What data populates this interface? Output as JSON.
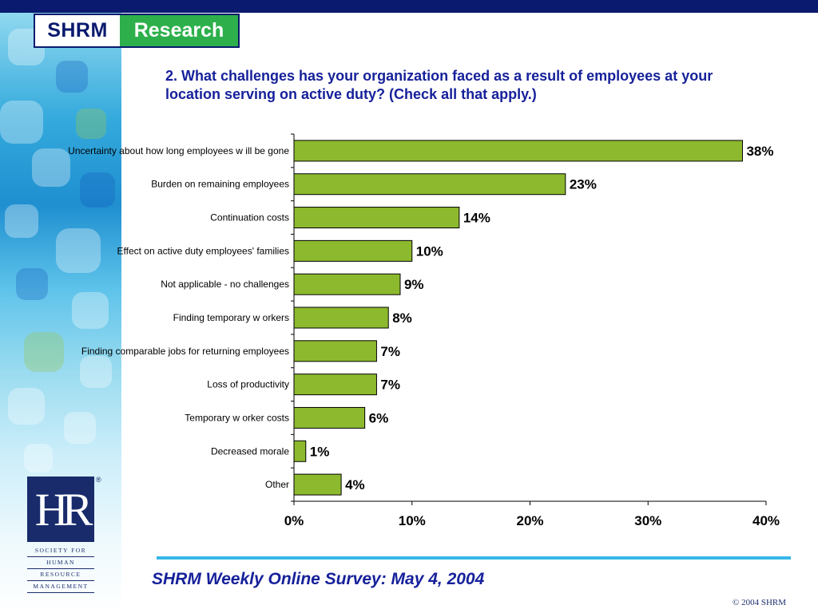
{
  "header": {
    "logo_left": "SHRM",
    "logo_right": "Research"
  },
  "question": "2. What challenges has your organization faced as a result of employees at your location serving on active duty?  (Check all that apply.)",
  "chart_data": {
    "type": "bar",
    "orientation": "horizontal",
    "categories": [
      "Uncertainty about how  long employees w ill be gone",
      "Burden on remaining employees",
      "Continuation costs",
      "Effect on active duty employees' families",
      "Not applicable - no challenges",
      "Finding temporary w orkers",
      "Finding comparable jobs for returning employees",
      "Loss of productivity",
      "Temporary w orker costs",
      "Decreased morale",
      "Other"
    ],
    "values": [
      38,
      23,
      14,
      10,
      9,
      8,
      7,
      7,
      6,
      1,
      4
    ],
    "value_labels": [
      "38%",
      "23%",
      "14%",
      "10%",
      "9%",
      "8%",
      "7%",
      "7%",
      "6%",
      "1%",
      "4%"
    ],
    "xlim": [
      0,
      40
    ],
    "xticks": [
      0,
      10,
      20,
      30,
      40
    ],
    "xtick_labels": [
      "0%",
      "10%",
      "20%",
      "30%",
      "40%"
    ],
    "bar_color": "#8db92e",
    "grid": false
  },
  "footer": {
    "title": "SHRM Weekly Online Survey: May 4, 2004",
    "copyright": "© 2004 SHRM"
  },
  "hr_logo": {
    "mark": "HR",
    "registered": "®",
    "lines": [
      "SOCIETY FOR",
      "HUMAN",
      "RESOURCE",
      "MANAGEMENT"
    ]
  },
  "colors": {
    "navy": "#0a1a6e",
    "title_blue": "#16219a",
    "accent_green": "#2db04b",
    "footer_line": "#36b7e9"
  }
}
